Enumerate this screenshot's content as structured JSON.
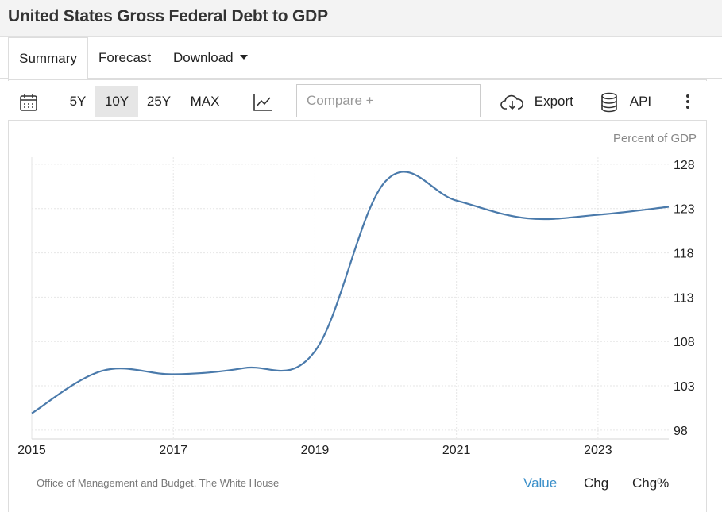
{
  "page": {
    "title": "United States Gross Federal Debt to GDP"
  },
  "tabs": [
    {
      "label": "Summary",
      "active": true
    },
    {
      "label": "Forecast"
    },
    {
      "label": "Download"
    }
  ],
  "toolbar": {
    "calendar_icon": "calendar-icon",
    "ranges": [
      {
        "label": "5Y"
      },
      {
        "label": "10Y",
        "active": true
      },
      {
        "label": "25Y"
      },
      {
        "label": "MAX"
      }
    ],
    "chart_type_icon": "line-chart-icon",
    "compare_placeholder": "Compare +",
    "export_label": "Export",
    "export_icon": "cloud-download-icon",
    "api_label": "API",
    "api_icon": "database-icon",
    "more_icon": "more-vertical-icon"
  },
  "chart_data": {
    "type": "line",
    "unit_label": "Percent of GDP",
    "x": [
      2015,
      2016,
      2017,
      2018,
      2019,
      2020,
      2021,
      2022,
      2023,
      2024
    ],
    "series": [
      {
        "values": [
          99.9,
          104.7,
          104.3,
          105.0,
          106.9,
          126.1,
          123.9,
          121.9,
          122.3,
          123.2
        ],
        "color": "#4a7aab"
      }
    ],
    "x_ticks": [
      "2015",
      "2017",
      "2019",
      "2021",
      "2023"
    ],
    "y_ticks": [
      "128",
      "123",
      "118",
      "113",
      "108",
      "103",
      "98"
    ],
    "xlim": [
      2015,
      2024
    ],
    "ylim": [
      97,
      128.8
    ],
    "grid": true,
    "y_axis_position": "right"
  },
  "footer": {
    "source": "Office of Management and Budget, The White House",
    "tabs": [
      {
        "label": "Value",
        "active": true
      },
      {
        "label": "Chg"
      },
      {
        "label": "Chg%"
      }
    ]
  }
}
